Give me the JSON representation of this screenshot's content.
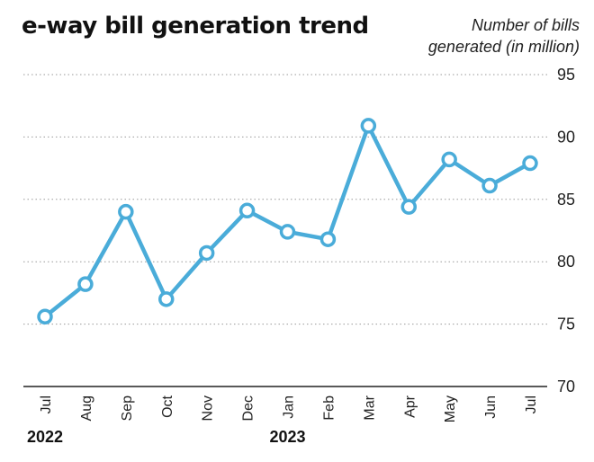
{
  "chart_data": {
    "type": "line",
    "title": "e-way bill generation trend",
    "ylabel_lines": [
      "Number of bills",
      "generated (in million)"
    ],
    "categories": [
      "Jul",
      "Aug",
      "Sep",
      "Oct",
      "Nov",
      "Dec",
      "Jan",
      "Feb",
      "Mar",
      "Apr",
      "May",
      "Jun",
      "Jul"
    ],
    "year_labels": [
      {
        "label": "2022",
        "category_index": 0
      },
      {
        "label": "2023",
        "category_index": 6
      }
    ],
    "values": [
      75.6,
      78.2,
      84.0,
      77.0,
      80.7,
      84.1,
      82.4,
      81.8,
      90.9,
      84.4,
      88.2,
      86.1,
      87.9
    ],
    "ylim": [
      70,
      95
    ],
    "yticks": [
      70,
      75,
      80,
      85,
      90,
      95
    ],
    "grid": true,
    "legend": "none",
    "colors": {
      "line": "#4aacd9",
      "marker_fill": "#ffffff",
      "grid": "#9a9a9a",
      "axis": "#222222"
    }
  }
}
